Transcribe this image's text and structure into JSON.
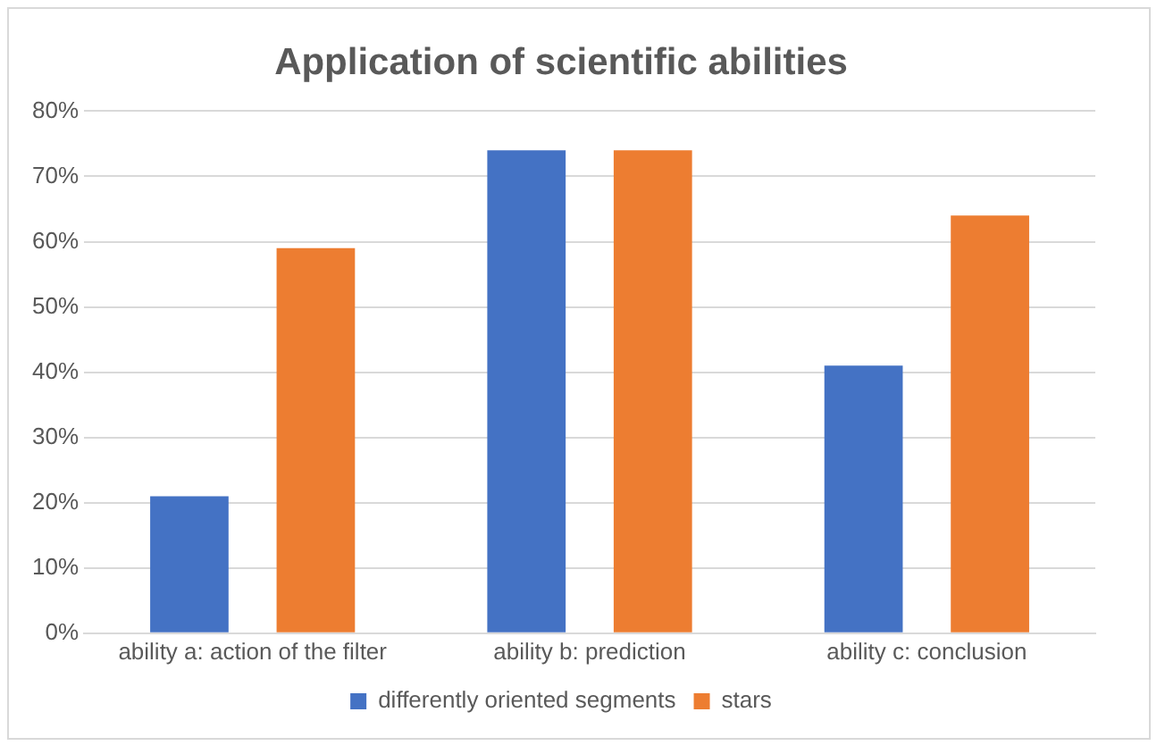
{
  "chart_data": {
    "type": "bar",
    "title": "Application of scientific abilities",
    "categories": [
      "ability a: action of the filter",
      "ability b: prediction",
      "ability c: conclusion"
    ],
    "series": [
      {
        "name": "differently oriented segments",
        "color": "#4472c4",
        "values": [
          21,
          74,
          41
        ]
      },
      {
        "name": "stars",
        "color": "#ed7d31",
        "values": [
          59,
          74,
          64
        ]
      }
    ],
    "ylim": [
      0,
      80
    ],
    "yticks": [
      {
        "value": 0,
        "label": "0%"
      },
      {
        "value": 10,
        "label": "10%"
      },
      {
        "value": 20,
        "label": "20%"
      },
      {
        "value": 30,
        "label": "30%"
      },
      {
        "value": 40,
        "label": "40%"
      },
      {
        "value": 50,
        "label": "50%"
      },
      {
        "value": 60,
        "label": "60%"
      },
      {
        "value": 70,
        "label": "70%"
      },
      {
        "value": 80,
        "label": "80%"
      }
    ],
    "grid": "y",
    "legend": "bottom"
  }
}
